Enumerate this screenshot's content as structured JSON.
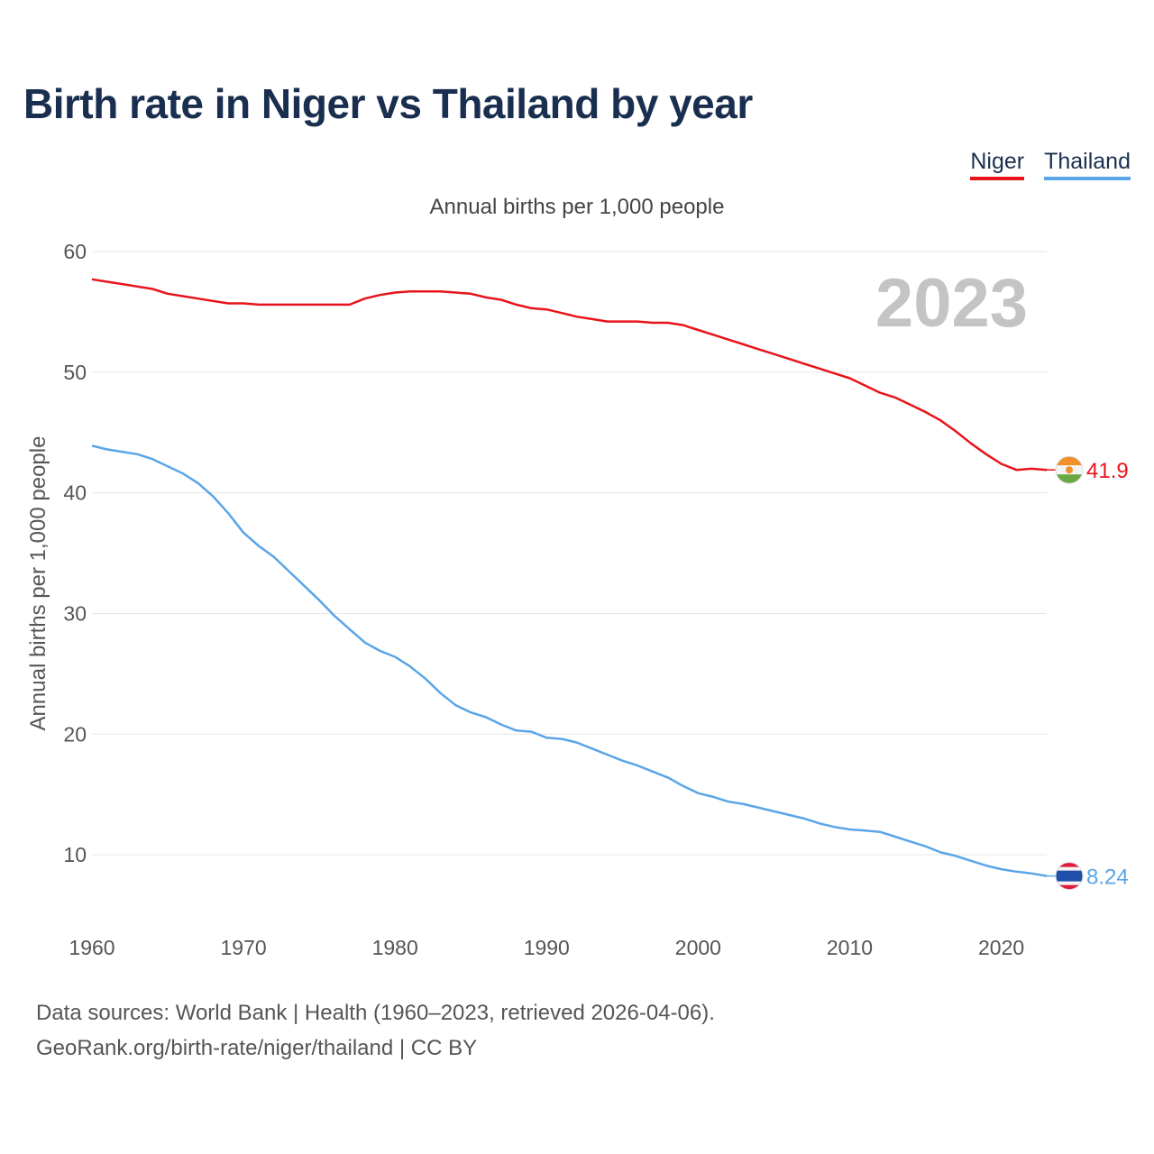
{
  "title": "Birth rate in Niger vs Thailand by year",
  "subtitle": "Annual births per 1,000 people",
  "legend": [
    {
      "name": "Niger",
      "color": "#e8141c"
    },
    {
      "name": "Thailand",
      "color": "#5aa5e8"
    }
  ],
  "year_label": "2023",
  "footer": {
    "line1": "Data sources: World Bank | Health (1960–2023, retrieved 2026-04-06).",
    "line2": "GeoRank.org/birth-rate/niger/thailand | CC BY"
  },
  "chart_data": {
    "type": "line",
    "title": "Birth rate in Niger vs Thailand by year",
    "xlabel": "",
    "ylabel": "Annual births per 1,000 people",
    "xlim": [
      1960,
      2023
    ],
    "ylim": [
      5,
      60
    ],
    "x_ticks": [
      1960,
      1970,
      1980,
      1990,
      2000,
      2010,
      2020
    ],
    "y_ticks": [
      10,
      20,
      30,
      40,
      50,
      60
    ],
    "grid": true,
    "x": [
      1960,
      1961,
      1962,
      1963,
      1964,
      1965,
      1966,
      1967,
      1968,
      1969,
      1970,
      1971,
      1972,
      1973,
      1974,
      1975,
      1976,
      1977,
      1978,
      1979,
      1980,
      1981,
      1982,
      1983,
      1984,
      1985,
      1986,
      1987,
      1988,
      1989,
      1990,
      1991,
      1992,
      1993,
      1994,
      1995,
      1996,
      1997,
      1998,
      1999,
      2000,
      2001,
      2002,
      2003,
      2004,
      2005,
      2006,
      2007,
      2008,
      2009,
      2010,
      2011,
      2012,
      2013,
      2014,
      2015,
      2016,
      2017,
      2018,
      2019,
      2020,
      2021,
      2022,
      2023
    ],
    "series": [
      {
        "name": "Niger",
        "color": "#e8141c",
        "end_label": "41.9",
        "flag": "niger-flag-icon",
        "values": [
          57.7,
          57.5,
          57.3,
          57.1,
          56.9,
          56.5,
          56.3,
          56.1,
          55.9,
          55.7,
          55.7,
          55.6,
          55.6,
          55.6,
          55.6,
          55.6,
          55.6,
          55.6,
          56.1,
          56.4,
          56.6,
          56.7,
          56.7,
          56.7,
          56.6,
          56.5,
          56.2,
          56.0,
          55.6,
          55.3,
          55.2,
          54.9,
          54.6,
          54.4,
          54.2,
          54.2,
          54.2,
          54.1,
          54.1,
          53.9,
          53.5,
          53.1,
          52.7,
          52.3,
          51.9,
          51.5,
          51.1,
          50.7,
          50.3,
          49.9,
          49.5,
          48.9,
          48.3,
          47.9,
          47.3,
          46.7,
          46.0,
          45.1,
          44.1,
          43.2,
          42.4,
          41.9,
          42.0,
          41.9
        ]
      },
      {
        "name": "Thailand",
        "color": "#5aa5e8",
        "end_label": "8.24",
        "flag": "thailand-flag-icon",
        "values": [
          43.9,
          43.6,
          43.4,
          43.2,
          42.8,
          42.2,
          41.6,
          40.8,
          39.7,
          38.3,
          36.7,
          35.6,
          34.7,
          33.5,
          32.3,
          31.1,
          29.8,
          28.7,
          27.6,
          26.9,
          26.4,
          25.6,
          24.6,
          23.4,
          22.4,
          21.8,
          21.4,
          20.8,
          20.3,
          20.2,
          19.7,
          19.6,
          19.3,
          18.8,
          18.3,
          17.8,
          17.4,
          16.9,
          16.4,
          15.7,
          15.1,
          14.8,
          14.4,
          14.2,
          13.9,
          13.6,
          13.3,
          13.0,
          12.6,
          12.3,
          12.1,
          12.0,
          11.9,
          11.5,
          11.1,
          10.7,
          10.2,
          9.9,
          9.5,
          9.1,
          8.8,
          8.6,
          8.45,
          8.24
        ]
      }
    ]
  }
}
